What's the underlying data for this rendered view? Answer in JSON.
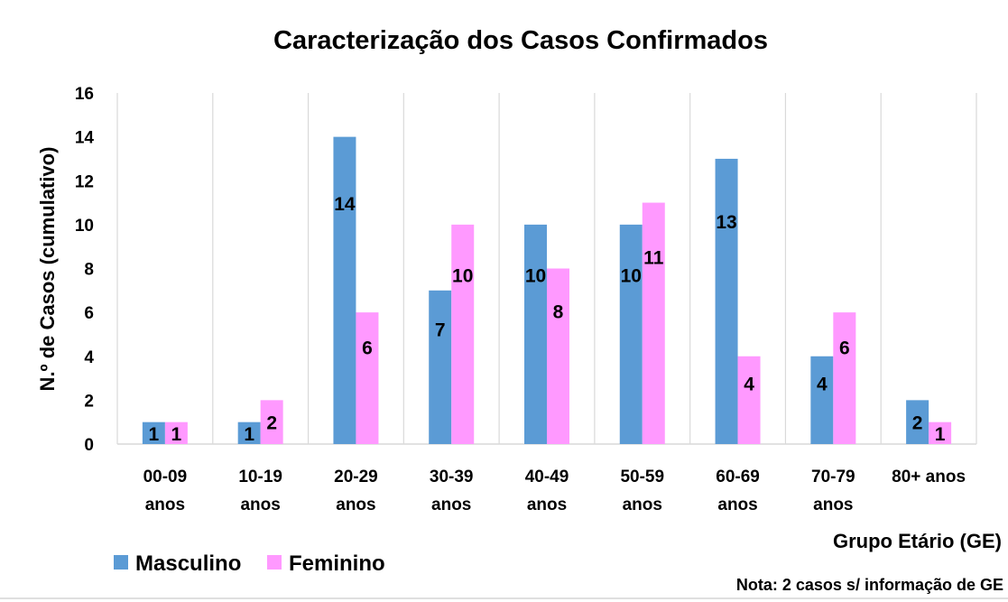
{
  "chart_data": {
    "type": "bar",
    "title": "Caracterização dos Casos Confirmados",
    "xlabel": "Grupo Etário (GE)",
    "ylabel": "N.º de Casos (cumulativo)",
    "note": "Nota: 2 casos s/ informação de GE",
    "categories": [
      [
        "00-09",
        "anos"
      ],
      [
        "10-19",
        "anos"
      ],
      [
        "20-29",
        "anos"
      ],
      [
        "30-39",
        "anos"
      ],
      [
        "40-49",
        "anos"
      ],
      [
        "50-59",
        "anos"
      ],
      [
        "60-69",
        "anos"
      ],
      [
        "70-79",
        "anos"
      ],
      [
        "80+ anos"
      ]
    ],
    "series": [
      {
        "name": "Masculino",
        "color": "#5B9BD5",
        "values": [
          1,
          1,
          14,
          7,
          10,
          10,
          13,
          4,
          2
        ]
      },
      {
        "name": "Feminino",
        "color": "#FF99FF",
        "values": [
          1,
          2,
          6,
          10,
          8,
          11,
          4,
          6,
          1
        ]
      }
    ],
    "ylim": [
      0,
      16
    ],
    "yticks": [
      0,
      2,
      4,
      6,
      8,
      10,
      12,
      14,
      16
    ],
    "grid": "vertical",
    "legend": "bottom-left"
  }
}
